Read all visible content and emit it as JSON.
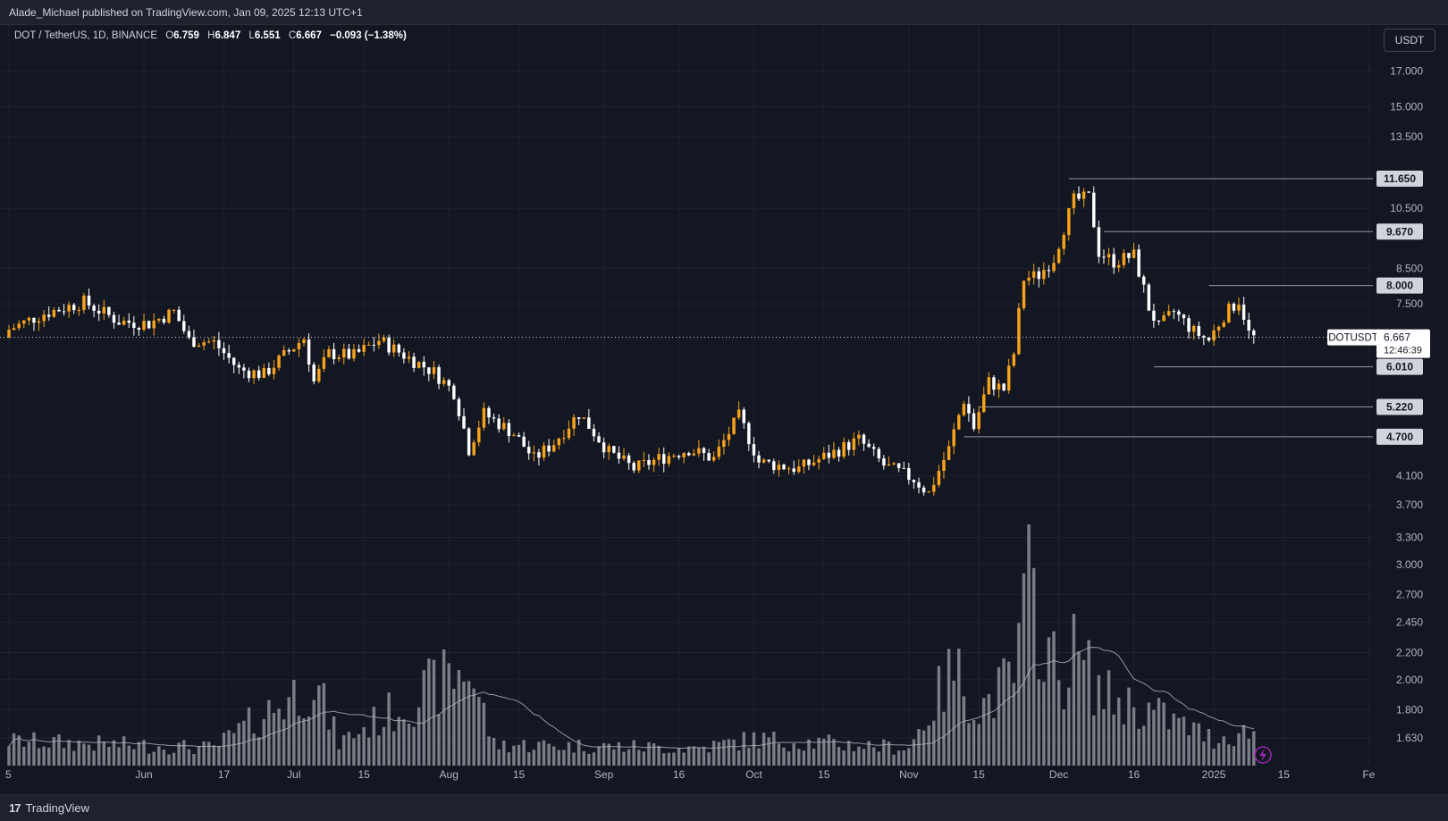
{
  "header": {
    "published_by": "Alade_Michael published on TradingView.com, Jan 09, 2025 12:13 UTC+1"
  },
  "legend": {
    "symbol": "DOT / TetherUS, 1D, BINANCE",
    "open_label": "O",
    "open": "6.759",
    "high_label": "H",
    "high": "6.847",
    "low_label": "L",
    "low": "6.551",
    "close_label": "C",
    "close": "6.667",
    "change": "−0.093 (−1.38%)"
  },
  "currency_button": "USDT",
  "footer": {
    "brand": "TradingView",
    "brand_icon": "tradingview-logo-icon"
  },
  "colors": {
    "background": "#131722",
    "up_candle": "#f7a21b",
    "down_candle": "#ffffff",
    "volume": "#8d8f96",
    "volume_ma": "#b2b5be",
    "grid": "#1f2330",
    "lightning_badge": "#9c27b0"
  },
  "chart_data": {
    "type": "candlestick",
    "interval": "1D",
    "scale": "log",
    "grid": true,
    "x_axis": {
      "tick_labels": [
        "5",
        "Jun",
        "17",
        "Jul",
        "15",
        "Aug",
        "15",
        "Sep",
        "16",
        "Oct",
        "15",
        "Nov",
        "15",
        "Dec",
        "16",
        "2025",
        "15",
        "Fe"
      ],
      "range": [
        "2024-05-05",
        "2025-02-01"
      ]
    },
    "y_axis": {
      "tick_labels": [
        "17.000",
        "15.000",
        "13.500",
        "10.500",
        "8.500",
        "7.500",
        "4.100",
        "3.700",
        "3.300",
        "3.000",
        "2.700",
        "2.450",
        "2.200",
        "2.000",
        "1.800",
        "1.630"
      ],
      "range": [
        1.55,
        18.2
      ]
    },
    "horizontal_levels": [
      {
        "price": 11.65,
        "label": "11.650",
        "from": "2024-12-03"
      },
      {
        "price": 9.67,
        "label": "9.670",
        "from": "2024-12-10"
      },
      {
        "price": 8.0,
        "label": "8.000",
        "from": "2024-12-31"
      },
      {
        "price": 6.01,
        "label": "6.010",
        "from": "2024-12-20"
      },
      {
        "price": 5.22,
        "label": "5.220",
        "from": "2024-11-15"
      },
      {
        "price": 4.7,
        "label": "4.700",
        "from": "2024-11-12"
      }
    ],
    "last_price": {
      "symbol": "DOTUSDT",
      "value": "6.667",
      "countdown": "12:46:39",
      "price": 6.667
    },
    "close_path": [
      [
        "2024-05-05",
        6.85
      ],
      [
        "2024-05-12",
        7.25
      ],
      [
        "2024-05-20",
        7.55
      ],
      [
        "2024-05-27",
        7.05
      ],
      [
        "2024-06-02",
        7.0
      ],
      [
        "2024-06-07",
        7.3
      ],
      [
        "2024-06-10",
        6.6
      ],
      [
        "2024-06-15",
        6.55
      ],
      [
        "2024-06-20",
        5.95
      ],
      [
        "2024-06-25",
        5.85
      ],
      [
        "2024-06-30",
        6.35
      ],
      [
        "2024-07-03",
        6.65
      ],
      [
        "2024-07-05",
        5.7
      ],
      [
        "2024-07-08",
        6.3
      ],
      [
        "2024-07-13",
        6.25
      ],
      [
        "2024-07-18",
        6.6
      ],
      [
        "2024-07-24",
        6.2
      ],
      [
        "2024-07-29",
        5.9
      ],
      [
        "2024-08-02",
        5.5
      ],
      [
        "2024-08-05",
        4.5
      ],
      [
        "2024-08-08",
        5.1
      ],
      [
        "2024-08-14",
        4.75
      ],
      [
        "2024-08-18",
        4.35
      ],
      [
        "2024-08-22",
        4.6
      ],
      [
        "2024-08-27",
        5.1
      ],
      [
        "2024-09-02",
        4.45
      ],
      [
        "2024-09-07",
        4.2
      ],
      [
        "2024-09-12",
        4.35
      ],
      [
        "2024-09-18",
        4.5
      ],
      [
        "2024-09-23",
        4.35
      ],
      [
        "2024-09-28",
        5.05
      ],
      [
        "2024-10-02",
        4.3
      ],
      [
        "2024-10-10",
        4.2
      ],
      [
        "2024-10-17",
        4.45
      ],
      [
        "2024-10-22",
        4.65
      ],
      [
        "2024-10-27",
        4.25
      ],
      [
        "2024-11-02",
        4.05
      ],
      [
        "2024-11-05",
        3.85
      ],
      [
        "2024-11-09",
        4.5
      ],
      [
        "2024-11-12",
        5.35
      ],
      [
        "2024-11-14",
        4.85
      ],
      [
        "2024-11-17",
        5.7
      ],
      [
        "2024-11-20",
        5.55
      ],
      [
        "2024-11-22",
        6.3
      ],
      [
        "2024-11-24",
        8.2
      ],
      [
        "2024-11-27",
        8.3
      ],
      [
        "2024-11-30",
        8.8
      ],
      [
        "2024-12-04",
        10.8
      ],
      [
        "2024-12-07",
        10.9
      ],
      [
        "2024-12-09",
        9.0
      ],
      [
        "2024-12-12",
        8.7
      ],
      [
        "2024-12-16",
        8.9
      ],
      [
        "2024-12-19",
        7.4
      ],
      [
        "2024-12-21",
        6.9
      ],
      [
        "2024-12-24",
        7.3
      ],
      [
        "2024-12-28",
        6.8
      ],
      [
        "2024-12-31",
        6.6
      ],
      [
        "2025-01-03",
        7.2
      ],
      [
        "2025-01-06",
        7.6
      ],
      [
        "2025-01-07",
        7.2
      ],
      [
        "2025-01-08",
        6.759
      ],
      [
        "2025-01-09",
        6.667
      ]
    ],
    "volume_path": [
      [
        "2024-05-05",
        0.14
      ],
      [
        "2024-06-15",
        0.1
      ],
      [
        "2024-07-05",
        0.48
      ],
      [
        "2024-07-10",
        0.13
      ],
      [
        "2024-08-05",
        0.56
      ],
      [
        "2024-08-10",
        0.12
      ],
      [
        "2024-09-20",
        0.1
      ],
      [
        "2024-10-01",
        0.15
      ],
      [
        "2024-11-01",
        0.1
      ],
      [
        "2024-11-10",
        0.55
      ],
      [
        "2024-11-15",
        0.32
      ],
      [
        "2024-11-22",
        0.5
      ],
      [
        "2024-11-25",
        1.0
      ],
      [
        "2024-12-01",
        0.48
      ],
      [
        "2024-12-04",
        0.64
      ],
      [
        "2024-12-10",
        0.4
      ],
      [
        "2024-12-20",
        0.3
      ],
      [
        "2025-01-01",
        0.15
      ],
      [
        "2025-01-09",
        0.2
      ]
    ]
  }
}
